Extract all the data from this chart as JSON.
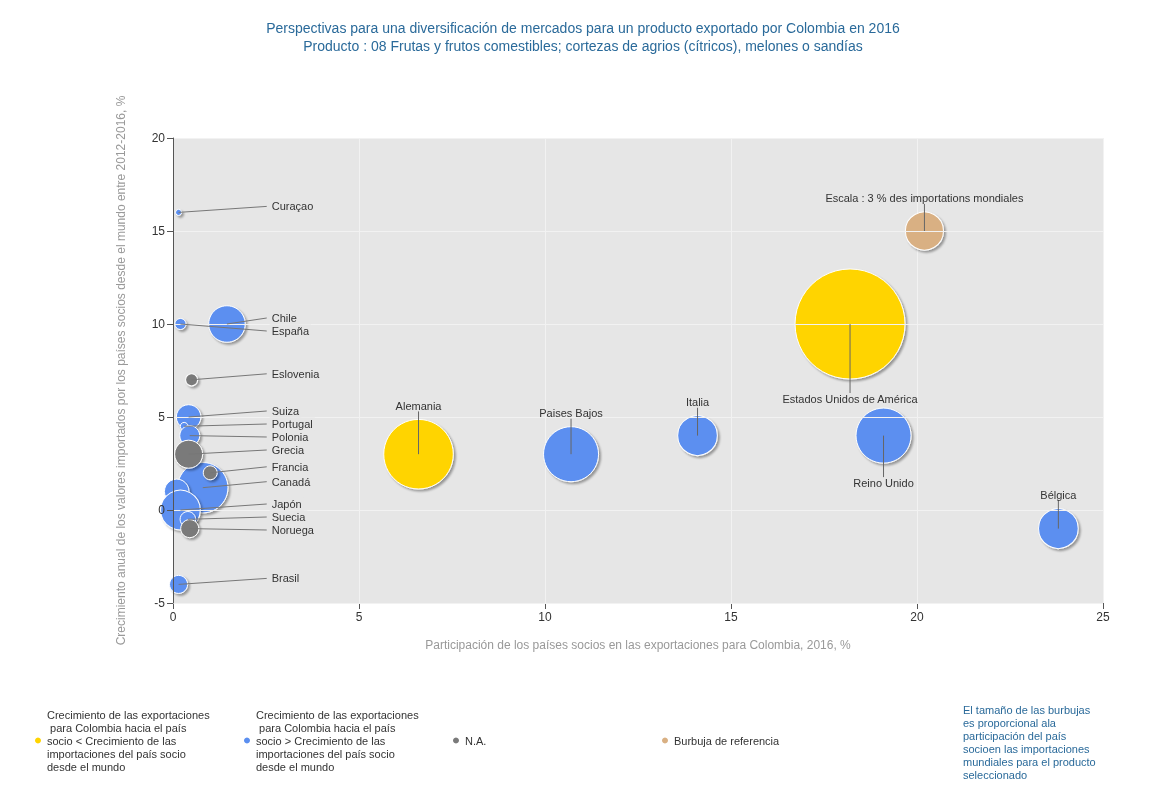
{
  "chart_data": {
    "type": "bubble",
    "title": "Perspectivas para una diversificación de mercados para un producto exportado por Colombia en 2016",
    "subtitle": "Producto : 08 Frutas y frutos comestibles; cortezas de agrios (cítricos), melones o sandías",
    "xlabel": "Participación de los países socios en las exportaciones para Colombia, 2016, %",
    "ylabel": "Crecimiento anual de los valores importados por los países socios desde el mundo entre 2012-2016, %",
    "xlim": [
      0,
      25
    ],
    "xticks": [
      0,
      5,
      10,
      15,
      20,
      25
    ],
    "ylim": [
      -5,
      20
    ],
    "yticks": [
      -5,
      0,
      5,
      10,
      15,
      20
    ],
    "grid": true,
    "legend": "bottom",
    "series": [
      {
        "name": "Crecimiento de las exportaciones para Colombia hacia el país socio < Crecimiento de las importaciones del país socio desde el mundo",
        "color": "#ffd400",
        "x": [
          18.2,
          6.6
        ],
        "values": [
          10,
          3
        ],
        "sizes": [
          1,
          0.4
        ]
      },
      {
        "name": "Crecimiento de las exportaciones para Colombia hacia el país socio > Crecimiento de las importaciones del país socio desde el mundo",
        "color": "#5b8ff0",
        "x": [
          10.7,
          14.1,
          19.1,
          23.8,
          1.45,
          0.2,
          0.42,
          0.3,
          0.45,
          0.8,
          0.1,
          0.2,
          0.4,
          0.15,
          0.15
        ],
        "values": [
          3,
          4,
          4,
          -1,
          10,
          10,
          5,
          4.5,
          4,
          1.2,
          1,
          0,
          -0.5,
          -4,
          16
        ],
        "sizes": [
          0.25,
          0.13,
          0.25,
          0.13,
          0.11,
          0.01,
          0.05,
          0.005,
          0.033,
          0.21,
          0.05,
          0.13,
          0.02,
          0.027,
          0.003
        ]
      },
      {
        "name": "N.A.",
        "color": "#7a7a7a",
        "x": [
          0.5,
          0.42,
          1.0,
          0.45
        ],
        "values": [
          7,
          3,
          2,
          -1
        ],
        "sizes": [
          0.012,
          0.065,
          0.016,
          0.027
        ]
      },
      {
        "name": "Burbuja de referencia",
        "color": "#d9b083",
        "x": [
          20.2
        ],
        "values": [
          15
        ],
        "sizes": [
          0.12
        ]
      }
    ],
    "annotations": [
      {
        "text": "Estados Unidos de América",
        "x": 18.2,
        "y": 10
      },
      {
        "text": "Alemania",
        "x": 6.6,
        "y": 3
      },
      {
        "text": "Paises Bajos",
        "x": 10.7,
        "y": 3
      },
      {
        "text": "Italia",
        "x": 14.1,
        "y": 4
      },
      {
        "text": "Reino Unido",
        "x": 19.1,
        "y": 4
      },
      {
        "text": "Bélgica",
        "x": 23.8,
        "y": -1
      },
      {
        "text": "Escala : 3 % des importations mondiales",
        "x": 20.2,
        "y": 15
      },
      {
        "text": "Curaçao",
        "x": 0.15,
        "y": 16
      },
      {
        "text": "Chile",
        "x": 1.45,
        "y": 10
      },
      {
        "text": "España",
        "x": 0.2,
        "y": 10
      },
      {
        "text": "Eslovenia",
        "x": 0.5,
        "y": 7
      },
      {
        "text": "Suiza",
        "x": 0.42,
        "y": 5
      },
      {
        "text": "Portugal",
        "x": 0.3,
        "y": 4.5
      },
      {
        "text": "Polonia",
        "x": 0.45,
        "y": 4
      },
      {
        "text": "Grecia",
        "x": 0.42,
        "y": 3
      },
      {
        "text": "Francia",
        "x": 1.0,
        "y": 2
      },
      {
        "text": "Canadá",
        "x": 0.8,
        "y": 1.2
      },
      {
        "text": "Japón",
        "x": 0.2,
        "y": 0
      },
      {
        "text": "Suecia",
        "x": 0.4,
        "y": -0.5
      },
      {
        "text": "Noruega",
        "x": 0.45,
        "y": -1
      },
      {
        "text": "Brasil",
        "x": 0.15,
        "y": -4
      },
      "El tamaño de las burbujas es proporcional ala participación del país socioen las importaciones mundiales para el producto seleccionado"
    ]
  }
}
